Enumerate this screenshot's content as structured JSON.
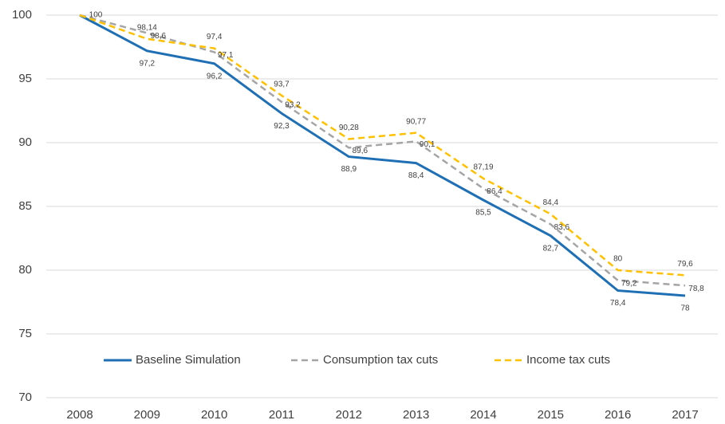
{
  "chart_data": {
    "type": "line",
    "categories": [
      "2008",
      "2009",
      "2010",
      "2011",
      "2012",
      "2013",
      "2014",
      "2015",
      "2016",
      "2017"
    ],
    "series": [
      {
        "name": "Baseline Simulation",
        "color": "#1f6fb4",
        "dash": "solid",
        "values": [
          100,
          97.2,
          96.2,
          92.3,
          88.9,
          88.4,
          85.5,
          82.7,
          78.4,
          78
        ],
        "value_labels": [
          "100",
          "97,2",
          "96,2",
          "92,3",
          "88,9",
          "88,4",
          "85,5",
          "82,7",
          "78,4",
          "78"
        ]
      },
      {
        "name": "Consumption tax cuts",
        "color": "#a5a5a5",
        "dash": "dashed",
        "values": [
          100,
          98.6,
          97.1,
          93.2,
          89.6,
          90.1,
          86.4,
          83.6,
          79.2,
          78.8
        ],
        "value_labels": [
          null,
          "98,6",
          "97,1",
          "93,2",
          "89,6",
          "90,1",
          "86,4",
          "83,6",
          "79,2",
          "78,8"
        ]
      },
      {
        "name": "Income tax cuts",
        "color": "#ffc000",
        "dash": "dashed",
        "values": [
          100,
          98.14,
          97.4,
          93.7,
          90.28,
          90.77,
          87.19,
          84.4,
          80,
          79.6
        ],
        "value_labels": [
          null,
          "98,14",
          "97,4",
          "93,7",
          "90,28",
          "90,77",
          "87,19",
          "84,4",
          "80",
          "79,6"
        ]
      }
    ],
    "ylim": [
      70,
      100
    ],
    "yticks": [
      70,
      75,
      80,
      85,
      90,
      95,
      100
    ],
    "grid": true,
    "legend": "bottom"
  }
}
